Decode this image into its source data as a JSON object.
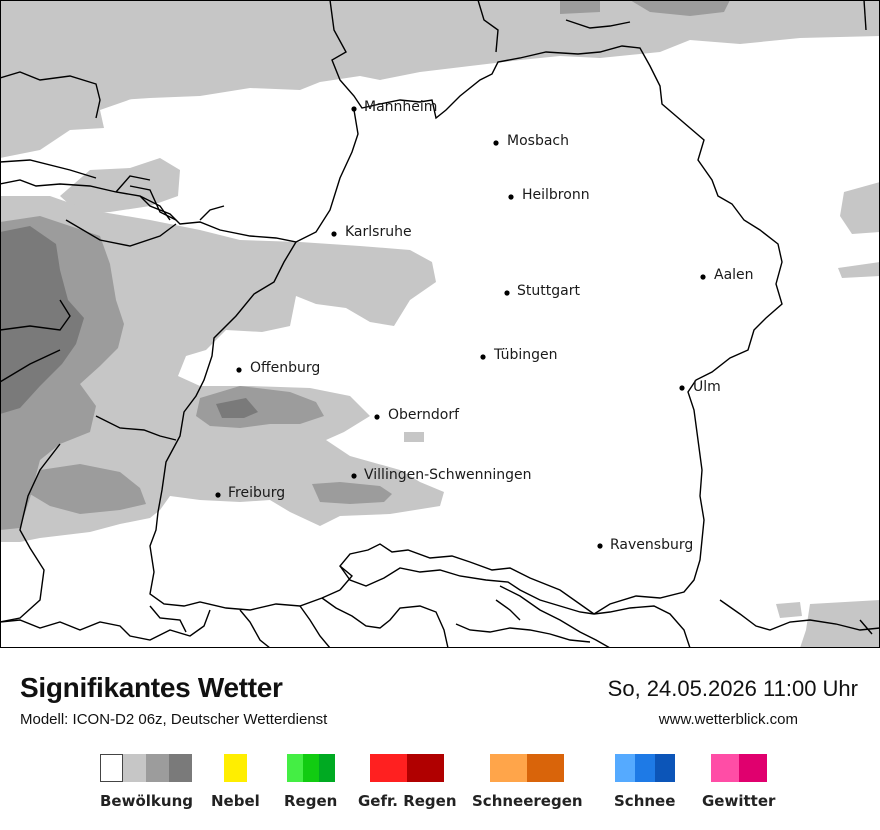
{
  "map": {
    "cities": [
      {
        "name": "Mannheim"
      },
      {
        "name": "Mosbach"
      },
      {
        "name": "Heilbronn"
      },
      {
        "name": "Karlsruhe"
      },
      {
        "name": "Aalen"
      },
      {
        "name": "Stuttgart"
      },
      {
        "name": "Tübingen"
      },
      {
        "name": "Offenburg"
      },
      {
        "name": "Ulm"
      },
      {
        "name": "Oberndorf"
      },
      {
        "name": "Villingen-Schwenningen"
      },
      {
        "name": "Freiburg"
      },
      {
        "name": "Ravensburg"
      }
    ],
    "colors": {
      "cloud_light": "#c6c6c6",
      "cloud_medium": "#9c9c9c",
      "cloud_dark": "#7a7a7a",
      "border": "#000000"
    }
  },
  "footer": {
    "title": "Signifikantes Wetter",
    "subtitle": "Modell: ICON-D2 06z, Deutscher Wetterdienst",
    "datetime": "So, 24.05.2026 11:00 Uhr",
    "website": "www.wetterblick.com"
  },
  "legend": [
    {
      "label": "Bewölkung",
      "colors": [
        "#ffffff",
        "#c6c6c6",
        "#9c9c9c",
        "#7a7a7a"
      ]
    },
    {
      "label": "Nebel",
      "colors": [
        "#ffee00"
      ]
    },
    {
      "label": "Regen",
      "colors": [
        "#44ee44",
        "#11cc11",
        "#00aa22"
      ]
    },
    {
      "label": "Gefr. Regen",
      "colors": [
        "#ff2020",
        "#b00000"
      ]
    },
    {
      "label": "Schneeregen",
      "colors": [
        "#ffa54a",
        "#d9640a"
      ]
    },
    {
      "label": "Schnee",
      "colors": [
        "#55aaff",
        "#1e7ae6",
        "#0c55b8"
      ]
    },
    {
      "label": "Gewitter",
      "colors": [
        "#ff4da6",
        "#e0006e"
      ]
    }
  ]
}
